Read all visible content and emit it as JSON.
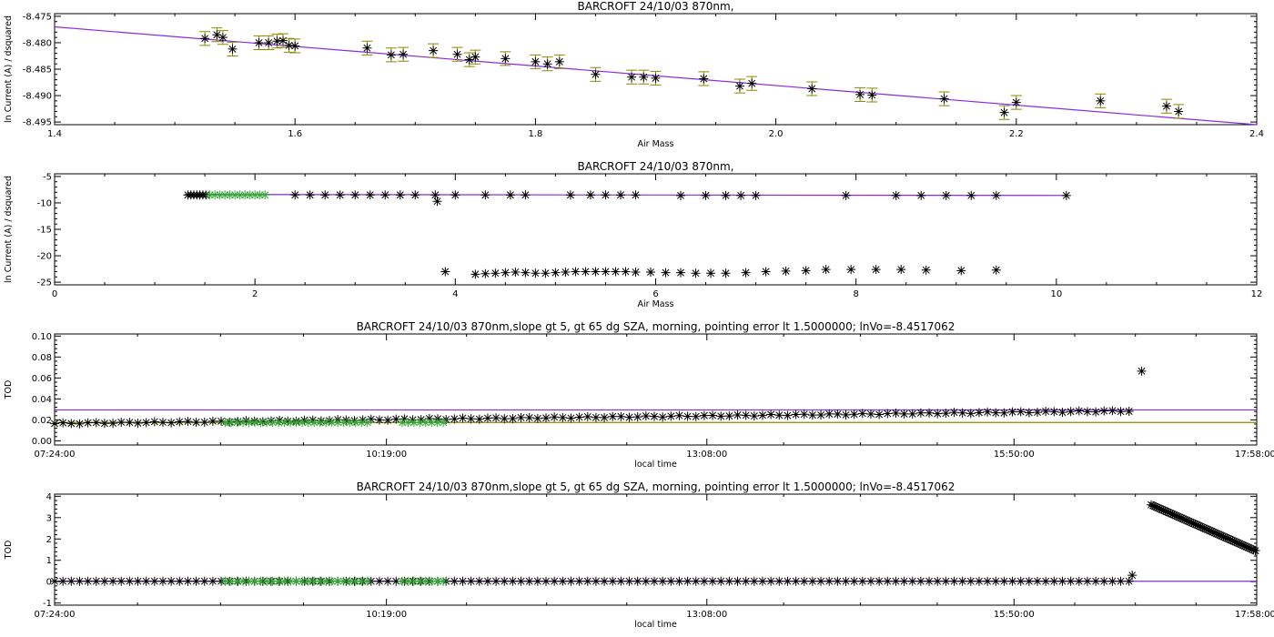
{
  "figure": {
    "background": "#ffffff",
    "colors": {
      "axes": "#000000",
      "fit_line": "#8a2be2",
      "error_bar": "#8b8b00",
      "marker_black": "#000000",
      "marker_green": "#33aa33",
      "baseline_olive": "#8b8b00"
    }
  },
  "chart_data": [
    {
      "type": "scatter",
      "title": "BARCROFT 24/10/03 870nm,",
      "xlabel": "Air Mass",
      "ylabel": "ln Current (A) / dsquared",
      "xlim": [
        1.4,
        2.4
      ],
      "ylim": [
        -8.4955,
        -8.4745
      ],
      "xticks": [
        1.4,
        1.6,
        1.8,
        2.0,
        2.2,
        2.4
      ],
      "xtick_labels": [
        "1.4",
        "1.6",
        "1.8",
        "2.0",
        "2.2",
        "2.4"
      ],
      "yticks": [
        -8.475,
        -8.48,
        -8.485,
        -8.49,
        -8.495
      ],
      "ytick_labels": [
        "-8.475",
        "-8.480",
        "-8.485",
        "-8.490",
        "-8.495"
      ],
      "fit_line": {
        "x": [
          1.4,
          2.4
        ],
        "y": [
          -8.477,
          -8.4955
        ]
      },
      "series": [
        {
          "marker": "asterisk",
          "error_bars": true,
          "error": 0.0013,
          "x": [
            1.525,
            1.535,
            1.54,
            1.548,
            1.57,
            1.578,
            1.585,
            1.59,
            1.595,
            1.6,
            1.66,
            1.68,
            1.69,
            1.715,
            1.735,
            1.745,
            1.75,
            1.775,
            1.8,
            1.81,
            1.82,
            1.85,
            1.88,
            1.89,
            1.9,
            1.94,
            1.97,
            1.98,
            2.03,
            2.07,
            2.08,
            2.14,
            2.19,
            2.2,
            2.27,
            2.325,
            2.335
          ],
          "y": [
            -8.4792,
            -8.4785,
            -8.479,
            -8.4812,
            -8.48,
            -8.48,
            -8.4797,
            -8.4796,
            -8.4805,
            -8.4806,
            -8.481,
            -8.4823,
            -8.4822,
            -8.4815,
            -8.4822,
            -8.4832,
            -8.4827,
            -8.483,
            -8.4836,
            -8.484,
            -8.4836,
            -8.486,
            -8.4865,
            -8.4865,
            -8.4867,
            -8.4868,
            -8.4882,
            -8.4877,
            -8.4887,
            -8.4898,
            -8.4899,
            -8.4906,
            -8.4932,
            -8.4913,
            -8.491,
            -8.492,
            -8.493
          ]
        }
      ]
    },
    {
      "type": "scatter",
      "title": "BARCROFT 24/10/03 870nm,",
      "xlabel": "Air Mass",
      "ylabel": "ln Current (A) / dsquared",
      "xlim": [
        0,
        12
      ],
      "ylim": [
        -25.5,
        -4.5
      ],
      "xticks": [
        0,
        2,
        4,
        6,
        8,
        10,
        12
      ],
      "xtick_labels": [
        "0",
        "2",
        "4",
        "6",
        "8",
        "10",
        "12"
      ],
      "yticks": [
        -5,
        -10,
        -15,
        -20,
        -25
      ],
      "ytick_labels": [
        "-5",
        "-10",
        "-15",
        "-20",
        "-25"
      ],
      "fit_line": {
        "x": [
          1.3,
          10.1
        ],
        "y": [
          -8.4,
          -8.6
        ]
      },
      "series": [
        {
          "marker": "asterisk",
          "color": "black",
          "x": [
            1.33,
            1.36,
            1.39,
            1.42,
            1.45,
            1.48,
            1.51,
            2.4,
            2.55,
            2.7,
            2.85,
            3.0,
            3.15,
            3.3,
            3.45,
            3.6,
            3.8,
            3.82,
            4.0,
            4.3,
            4.55,
            4.7,
            5.15,
            5.35,
            5.5,
            5.65,
            5.8,
            6.25,
            6.5,
            6.7,
            6.85,
            7.0,
            7.9,
            8.4,
            8.65,
            8.9,
            9.15,
            9.4,
            10.1
          ],
          "y": [
            -8.5,
            -8.5,
            -8.5,
            -8.5,
            -8.5,
            -8.5,
            -8.5,
            -8.5,
            -8.5,
            -8.5,
            -8.5,
            -8.5,
            -8.5,
            -8.5,
            -8.5,
            -8.5,
            -8.5,
            -9.7,
            -8.5,
            -8.5,
            -8.5,
            -8.5,
            -8.5,
            -8.5,
            -8.5,
            -8.5,
            -8.5,
            -8.6,
            -8.6,
            -8.6,
            -8.6,
            -8.6,
            -8.6,
            -8.6,
            -8.6,
            -8.6,
            -8.6,
            -8.6,
            -8.6
          ]
        },
        {
          "marker": "asterisk",
          "color": "green",
          "x": [
            1.55,
            1.6,
            1.65,
            1.7,
            1.75,
            1.8,
            1.85,
            1.9,
            1.95,
            2.0,
            2.05,
            2.1
          ],
          "y": [
            -8.5,
            -8.5,
            -8.5,
            -8.5,
            -8.5,
            -8.5,
            -8.5,
            -8.5,
            -8.5,
            -8.5,
            -8.5,
            -8.5
          ]
        },
        {
          "marker": "asterisk",
          "color": "black",
          "x": [
            3.9,
            4.2,
            4.3,
            4.4,
            4.5,
            4.6,
            4.7,
            4.8,
            4.9,
            5.0,
            5.1,
            5.2,
            5.3,
            5.4,
            5.5,
            5.6,
            5.7,
            5.8,
            5.95,
            6.1,
            6.25,
            6.4,
            6.55,
            6.7,
            6.9,
            7.1,
            7.3,
            7.5,
            7.7,
            7.95,
            8.2,
            8.45,
            8.7,
            9.05,
            9.4
          ],
          "y": [
            -23.0,
            -23.5,
            -23.4,
            -23.3,
            -23.2,
            -23.1,
            -23.2,
            -23.3,
            -23.3,
            -23.2,
            -23.1,
            -23.0,
            -23.0,
            -23.0,
            -23.0,
            -23.0,
            -23.0,
            -23.1,
            -23.1,
            -23.2,
            -23.2,
            -23.3,
            -23.3,
            -23.3,
            -23.2,
            -23.0,
            -22.9,
            -22.8,
            -22.6,
            -22.6,
            -22.6,
            -22.6,
            -22.7,
            -22.8,
            -22.7
          ]
        }
      ]
    },
    {
      "type": "scatter",
      "title": "BARCROFT 24/10/03 870nm,slope gt 5, gt 65 dg SZA, morning, pointing error lt 1.5000000; lnVo=-8.4517062",
      "xlabel": "local time",
      "ylabel": "TOD",
      "xlim": [
        0,
        38040
      ],
      "x_unit": "seconds after 07:24:00",
      "ylim": [
        -0.004,
        0.102
      ],
      "xticks": [
        0,
        10500,
        20640,
        30360,
        38040
      ],
      "xtick_labels": [
        "07:24:00",
        "10:19:00",
        "13:08:00",
        "15:50:00",
        "17:58:00"
      ],
      "yticks": [
        0,
        0.02,
        0.04,
        0.06,
        0.08,
        0.1
      ],
      "ytick_labels": [
        "0.00",
        "0.02",
        "0.04",
        "0.06",
        "0.08",
        "0.10"
      ],
      "reference_lines": [
        {
          "color": "purple",
          "y": 0.0295
        },
        {
          "color": "olive",
          "y": 0.0175
        }
      ],
      "series": [
        {
          "marker": "asterisk",
          "color": "black",
          "x_start": 0,
          "x_end": 34000,
          "count": 130,
          "y_start": 0.0165,
          "y_end": 0.0285,
          "outlier": {
            "x": 34400,
            "y": 0.0665
          }
        },
        {
          "marker": "asterisk",
          "color": "green",
          "x_ranges": [
            [
              5400,
              9900
            ],
            [
              11000,
              12300
            ]
          ],
          "y": 0.0175
        }
      ]
    },
    {
      "type": "scatter",
      "title": "BARCROFT 24/10/03 870nm,slope gt 5, gt 65 dg SZA, morning, pointing error lt 1.5000000; lnVo=-8.4517062",
      "xlabel": "local time",
      "ylabel": "TOD",
      "xlim": [
        0,
        38040
      ],
      "x_unit": "seconds after 07:24:00",
      "ylim": [
        -1.1,
        4.1
      ],
      "xticks": [
        0,
        10500,
        20640,
        30360,
        38040
      ],
      "xtick_labels": [
        "07:24:00",
        "10:19:00",
        "13:08:00",
        "15:50:00",
        "17:58:00"
      ],
      "yticks": [
        -1,
        0,
        1,
        2,
        3,
        4
      ],
      "ytick_labels": [
        "-1",
        "0",
        "1",
        "2",
        "3",
        "4"
      ],
      "reference_lines": [
        {
          "color": "purple",
          "y": 0.02
        }
      ],
      "series": [
        {
          "marker": "asterisk",
          "color": "black",
          "x_start": 0,
          "x_end": 34000,
          "count": 130,
          "y": 0.02,
          "extra_point": {
            "x": 34100,
            "y": 0.3
          }
        },
        {
          "marker": "asterisk",
          "color": "green",
          "x_ranges": [
            [
              5400,
              9900
            ],
            [
              11000,
              12300
            ]
          ],
          "y": 0.02
        },
        {
          "marker": "asterisk",
          "color": "black",
          "x_start": 34700,
          "x_end": 38000,
          "count": 60,
          "y_start": 3.6,
          "y_end": 1.45
        }
      ]
    }
  ]
}
